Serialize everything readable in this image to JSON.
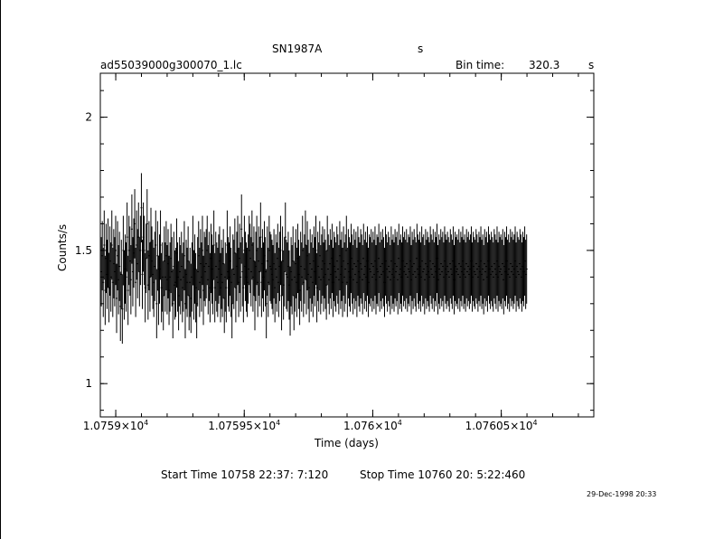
{
  "header": {
    "object": "SN1987A",
    "object_unit": "s",
    "filename": "ad55039000g300070_1.lc",
    "bin_label": "Bin time:",
    "bin_value": "320.3",
    "bin_unit": "s"
  },
  "footer": {
    "start": "Start Time 10758 22:37: 7:120",
    "stop": "Stop Time 10760 20: 5:22:460",
    "stamp": "29-Dec-1998 20:33"
  },
  "chart_data": {
    "type": "scatter",
    "xlabel": "Time (days)",
    "ylabel": "Counts/s",
    "xlim": [
      10758.94,
      10760.86
    ],
    "ylim": [
      0.875,
      2.165
    ],
    "x_ticks": [
      {
        "value": 10759.0,
        "mantissa": "1.0759",
        "exp": "4"
      },
      {
        "value": 10759.5,
        "mantissa": "1.07595",
        "exp": "4"
      },
      {
        "value": 10760.0,
        "mantissa": "1.076",
        "exp": "4"
      },
      {
        "value": 10760.5,
        "mantissa": "1.07605",
        "exp": "4"
      }
    ],
    "y_ticks": [
      {
        "value": 1,
        "label": "1"
      },
      {
        "value": 1.5,
        "label": "1.5"
      },
      {
        "value": 2,
        "label": "2"
      }
    ],
    "series": [
      {
        "x_start": 10758.944,
        "x_step": 0.00371,
        "y_err": 0.13,
        "y": [
          1.42,
          1.48,
          1.38,
          1.52,
          1.35,
          1.47,
          1.41,
          1.49,
          1.36,
          1.46,
          1.4,
          1.52,
          1.38,
          1.45,
          1.42,
          1.5,
          1.32,
          1.48,
          1.39,
          1.44,
          1.29,
          1.41,
          1.28,
          1.5,
          1.37,
          1.43,
          1.4,
          1.55,
          1.35,
          1.5,
          1.46,
          1.39,
          1.58,
          1.42,
          1.49,
          1.6,
          1.38,
          1.52,
          1.45,
          1.55,
          1.42,
          1.5,
          1.66,
          1.41,
          1.55,
          1.5,
          1.36,
          1.47,
          1.6,
          1.37,
          1.48,
          1.4,
          1.53,
          1.46,
          1.41,
          1.38,
          1.44,
          1.52,
          1.3,
          1.48,
          1.35,
          1.43,
          1.52,
          1.36,
          1.4,
          1.33,
          1.46,
          1.4,
          1.48,
          1.39,
          1.45,
          1.35,
          1.4,
          1.47,
          1.42,
          1.3,
          1.44,
          1.37,
          1.38,
          1.49,
          1.4,
          1.33,
          1.42,
          1.39,
          1.44,
          1.36,
          1.4,
          1.48,
          1.3,
          1.41,
          1.38,
          1.46,
          1.33,
          1.38,
          1.32,
          1.4,
          1.5,
          1.37,
          1.43,
          1.36,
          1.3,
          1.42,
          1.48,
          1.38,
          1.45,
          1.4,
          1.5,
          1.35,
          1.44,
          1.42,
          1.45,
          1.5,
          1.39,
          1.44,
          1.36,
          1.47,
          1.43,
          1.39,
          1.52,
          1.36,
          1.44,
          1.4,
          1.38,
          1.43,
          1.46,
          1.36,
          1.41,
          1.38,
          1.45,
          1.32,
          1.4,
          1.36,
          1.52,
          1.42,
          1.4,
          1.46,
          1.38,
          1.3,
          1.43,
          1.41,
          1.49,
          1.36,
          1.44,
          1.5,
          1.38,
          1.47,
          1.4,
          1.58,
          1.42,
          1.36,
          1.5,
          1.44,
          1.4,
          1.38,
          1.43,
          1.5,
          1.47,
          1.42,
          1.52,
          1.4,
          1.46,
          1.33,
          1.44,
          1.5,
          1.38,
          1.46,
          1.42,
          1.55,
          1.38,
          1.45,
          1.4,
          1.48,
          1.42,
          1.3,
          1.46,
          1.38,
          1.5,
          1.44,
          1.43,
          1.41,
          1.39,
          1.45,
          1.36,
          1.43,
          1.4,
          1.47,
          1.38,
          1.44,
          1.5,
          1.33,
          1.46,
          1.37,
          1.42,
          1.55,
          1.41,
          1.4,
          1.44,
          1.37,
          1.31,
          1.42,
          1.39,
          1.46,
          1.33,
          1.4,
          1.45,
          1.38,
          1.47,
          1.41,
          1.35,
          1.44,
          1.4,
          1.5,
          1.38,
          1.43,
          1.52,
          1.39,
          1.48,
          1.41,
          1.36,
          1.45,
          1.4,
          1.43,
          1.38,
          1.46,
          1.42,
          1.5,
          1.36,
          1.44,
          1.4,
          1.48,
          1.39,
          1.43,
          1.46,
          1.4,
          1.45,
          1.41,
          1.37,
          1.5,
          1.43,
          1.39,
          1.45,
          1.41,
          1.47,
          1.38,
          1.44,
          1.42,
          1.4,
          1.46,
          1.43,
          1.39,
          1.48,
          1.41,
          1.44,
          1.38,
          1.46,
          1.4,
          1.43,
          1.5,
          1.38,
          1.45,
          1.42,
          1.4,
          1.47,
          1.43,
          1.39,
          1.45,
          1.41,
          1.44,
          1.38,
          1.46,
          1.42,
          1.4,
          1.45,
          1.43,
          1.39,
          1.47,
          1.41,
          1.44,
          1.4,
          1.46,
          1.38,
          1.43,
          1.42,
          1.45,
          1.4,
          1.44,
          1.41,
          1.46,
          1.39,
          1.43,
          1.42,
          1.47,
          1.4,
          1.44,
          1.41,
          1.45,
          1.42,
          1.38,
          1.46,
          1.43,
          1.4,
          1.44,
          1.42,
          1.39,
          1.46,
          1.41,
          1.43,
          1.4,
          1.45,
          1.42,
          1.44,
          1.39,
          1.47,
          1.41,
          1.43,
          1.4,
          1.46,
          1.42,
          1.44,
          1.41,
          1.45,
          1.4,
          1.43,
          1.42,
          1.46,
          1.39,
          1.44,
          1.41,
          1.45,
          1.42,
          1.4,
          1.47,
          1.43,
          1.41,
          1.44,
          1.4,
          1.46,
          1.42,
          1.43,
          1.39,
          1.45,
          1.41,
          1.44,
          1.42,
          1.4,
          1.46,
          1.43,
          1.41,
          1.45,
          1.4,
          1.44,
          1.42,
          1.47,
          1.39,
          1.43,
          1.41,
          1.45,
          1.42,
          1.44,
          1.4,
          1.46,
          1.43,
          1.41,
          1.44,
          1.42,
          1.4,
          1.45,
          1.43,
          1.41,
          1.46,
          1.39,
          1.44,
          1.42,
          1.43,
          1.41,
          1.45,
          1.4,
          1.44,
          1.42,
          1.46,
          1.41,
          1.43,
          1.4,
          1.45,
          1.42,
          1.44,
          1.41,
          1.43,
          1.46,
          1.4,
          1.44,
          1.42,
          1.41,
          1.45,
          1.43,
          1.4,
          1.44,
          1.42,
          1.46,
          1.41,
          1.43,
          1.39,
          1.45,
          1.42,
          1.44,
          1.4,
          1.46,
          1.43,
          1.41,
          1.44,
          1.42,
          1.4,
          1.45,
          1.43,
          1.41,
          1.46,
          1.4,
          1.44,
          1.42,
          1.43,
          1.41,
          1.45,
          1.39,
          1.44,
          1.42,
          1.46,
          1.41,
          1.43,
          1.4,
          1.45,
          1.42,
          1.44,
          1.41,
          1.43,
          1.46,
          1.4,
          1.44,
          1.42,
          1.41,
          1.45,
          1.43,
          1.4,
          1.44,
          1.42,
          1.46,
          1.41,
          1.43
        ]
      }
    ]
  }
}
